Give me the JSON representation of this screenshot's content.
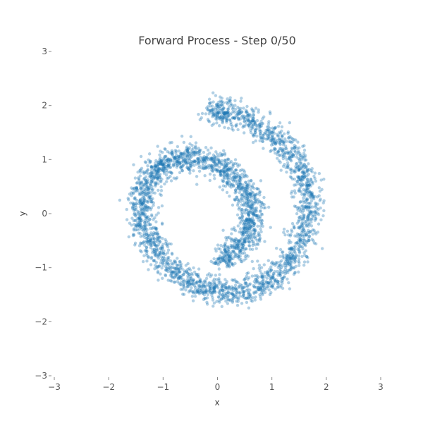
{
  "chart_data": {
    "type": "scatter",
    "title": "Forward Process - Step 0/50",
    "xlabel": "x",
    "ylabel": "y",
    "xlim": [
      -3,
      3
    ],
    "ylim": [
      -3,
      3
    ],
    "x_ticks": [
      "−3",
      "−2",
      "−1",
      "0",
      "1",
      "2",
      "3"
    ],
    "y_ticks": [
      "−3",
      "−2",
      "−1",
      "0",
      "1",
      "2",
      "3"
    ],
    "x_tick_values": [
      -3,
      -2,
      -1,
      0,
      1,
      2,
      3
    ],
    "y_tick_values": [
      -3,
      -2,
      -1,
      0,
      1,
      2,
      3
    ],
    "grid": false,
    "point_color": "#1f77b4",
    "series": [
      {
        "shape": "spiral band",
        "center": [
          0,
          0
        ],
        "start_point": [
          0,
          -0.85
        ],
        "end_point": [
          -0.1,
          1.9
        ],
        "band_width": 0.3,
        "x": [
          0.0,
          0.37,
          0.61,
          0.64,
          0.47,
          0.14,
          -0.27,
          -0.71,
          -1.08,
          -1.32,
          -1.4,
          -1.29,
          -1.03,
          -0.62,
          -0.12,
          0.42,
          0.92,
          1.33,
          1.6,
          1.68,
          1.55,
          1.22,
          0.73,
          0.17,
          -0.1
        ],
        "y": [
          -0.85,
          -0.68,
          -0.34,
          0.08,
          0.48,
          0.82,
          1.01,
          1.02,
          0.86,
          0.54,
          0.1,
          -0.38,
          -0.86,
          -1.21,
          -1.43,
          -1.45,
          -1.25,
          -0.88,
          -0.36,
          0.22,
          0.78,
          1.28,
          1.66,
          1.87,
          1.9
        ]
      }
    ]
  }
}
